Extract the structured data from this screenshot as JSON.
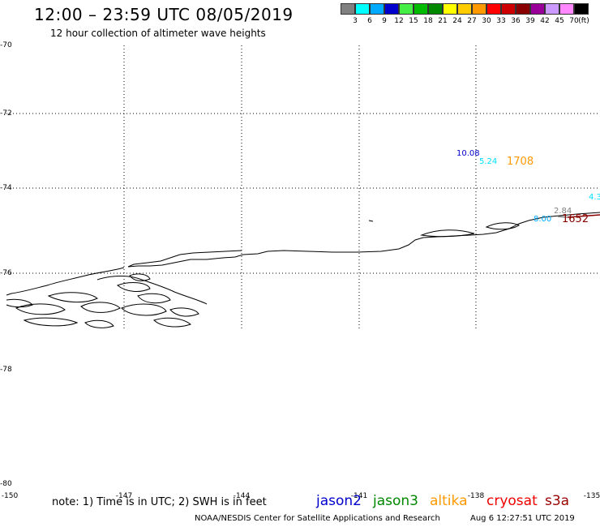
{
  "header": {
    "title": "12:00 – 23:59 UTC 08/05/2019",
    "subtitle": "12 hour collection of altimeter wave heights"
  },
  "legend": {
    "unit": "(ft)",
    "items": [
      {
        "value": "3",
        "color": "#808080"
      },
      {
        "value": "6",
        "color": "#00ffff"
      },
      {
        "value": "9",
        "color": "#00aaff"
      },
      {
        "value": "12",
        "color": "#0000cc"
      },
      {
        "value": "15",
        "color": "#44ee44"
      },
      {
        "value": "18",
        "color": "#00bb00"
      },
      {
        "value": "21",
        "color": "#008800"
      },
      {
        "value": "24",
        "color": "#ffff00"
      },
      {
        "value": "27",
        "color": "#ffcc00"
      },
      {
        "value": "30",
        "color": "#ff9900"
      },
      {
        "value": "33",
        "color": "#ff0000"
      },
      {
        "value": "36",
        "color": "#cc0000"
      },
      {
        "value": "39",
        "color": "#880000"
      },
      {
        "value": "42",
        "color": "#990099"
      },
      {
        "value": "45",
        "color": "#cc99ff"
      },
      {
        "value": "70",
        "color": "#ff88ff"
      },
      {
        "value": "",
        "color": "#000000"
      }
    ]
  },
  "axes": {
    "lat_labels": [
      "-70",
      "-72",
      "-74",
      "-76",
      "-78",
      "-80"
    ],
    "lon_labels": [
      "-150",
      "-147",
      "-144",
      "-141",
      "-138",
      "-135"
    ]
  },
  "measurements": [
    {
      "text": "10.08",
      "color": "#0000cc"
    },
    {
      "text": "5.24",
      "color": "#00e0ff"
    },
    {
      "text": "1708",
      "color": "#ff9900"
    },
    {
      "text": "4.3",
      "color": "#00e0ff"
    },
    {
      "text": "2.84",
      "color": "#808080"
    },
    {
      "text": "8.00",
      "color": "#00aaff"
    },
    {
      "text": "1652",
      "color": "#880000"
    }
  ],
  "footer": {
    "note": "note: 1) Time is in UTC; 2) SWH is in feet",
    "satellites": [
      {
        "name": "jason2",
        "color": "#0000cc"
      },
      {
        "name": "jason3",
        "color": "#008800"
      },
      {
        "name": "altika",
        "color": "#ff9900"
      },
      {
        "name": "cryosat",
        "color": "#ee0000"
      },
      {
        "name": "s3a",
        "color": "#990000"
      }
    ],
    "credit": "NOAA/NESDIS Center for Satellite Applications and Research",
    "generated": "Aug  6 12:27:51 UTC 2019"
  }
}
